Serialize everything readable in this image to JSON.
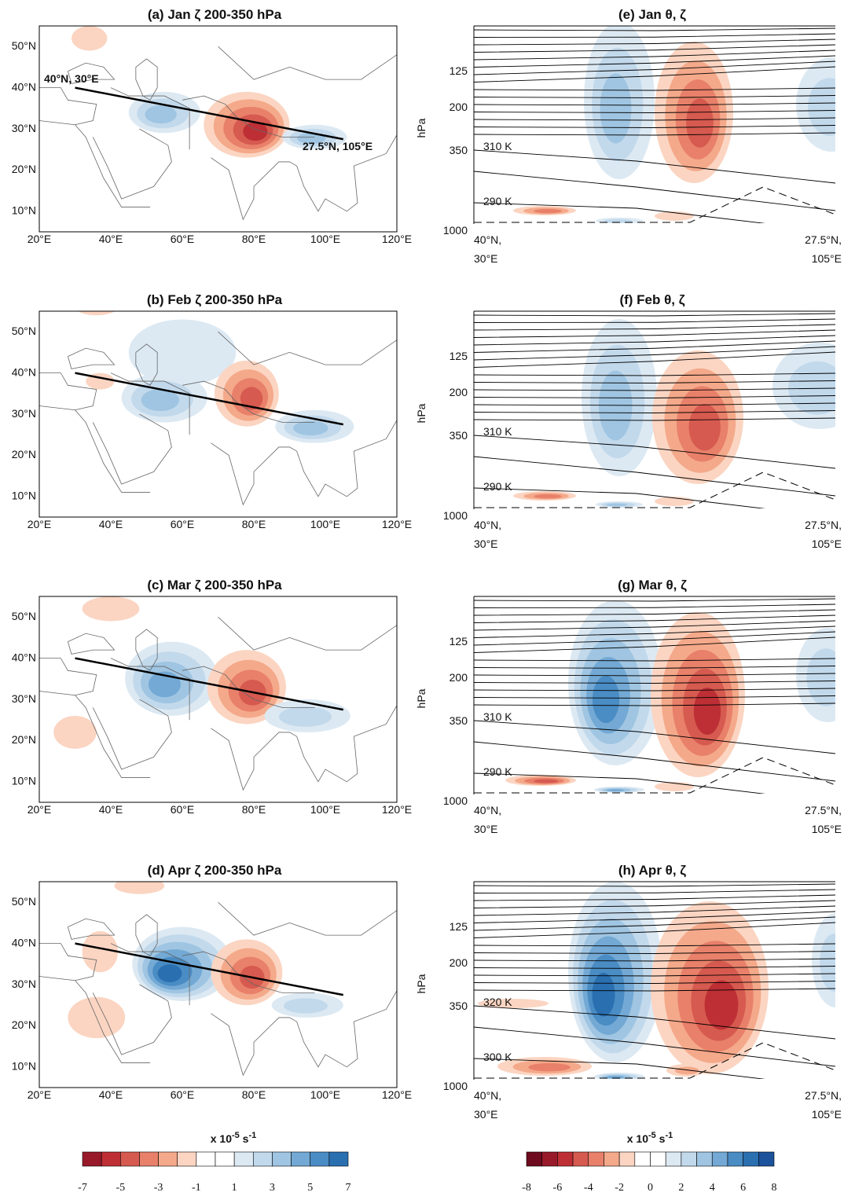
{
  "panels": [
    {
      "title": "(a) Jan ζ 200-350 hPa",
      "x_ticks": [
        "20°E",
        "40°E",
        "60°E",
        "80°E",
        "100°E",
        "120°E"
      ],
      "y_ticks": [
        "50°N",
        "40°N",
        "30°N",
        "20°N",
        "10°N"
      ],
      "annotations": [
        "40°N, 30°E",
        "27.5°N, 105°E"
      ]
    },
    {
      "title": "(b) Feb ζ 200-350 hPa",
      "x_ticks": [
        "20°E",
        "40°E",
        "60°E",
        "80°E",
        "100°E",
        "120°E"
      ],
      "y_ticks": [
        "50°N",
        "40°N",
        "30°N",
        "20°N",
        "10°N"
      ]
    },
    {
      "title": "(c) Mar ζ 200-350 hPa",
      "x_ticks": [
        "20°E",
        "40°E",
        "60°E",
        "80°E",
        "100°E",
        "120°E"
      ],
      "y_ticks": [
        "50°N",
        "40°N",
        "30°N",
        "20°N",
        "10°N"
      ]
    },
    {
      "title": "(d) Apr ζ 200-350 hPa",
      "x_ticks": [
        "20°E",
        "40°E",
        "60°E",
        "80°E",
        "100°E",
        "120°E"
      ],
      "y_ticks": [
        "50°N",
        "40°N",
        "30°N",
        "20°N",
        "10°N"
      ]
    }
  ],
  "sections": [
    {
      "title": "(e) Jan θ, ζ",
      "y_axis_label": "hPa",
      "y_ticks": [
        "125",
        "200",
        "350",
        "1000"
      ],
      "x_start": [
        "40°N,",
        "30°E"
      ],
      "x_end": [
        "27.5°N,",
        "105°E"
      ],
      "annotations": [
        "310 K",
        "290 K"
      ]
    },
    {
      "title": "(f) Feb θ, ζ",
      "y_axis_label": "hPa",
      "y_ticks": [
        "125",
        "200",
        "350",
        "1000"
      ],
      "x_start": [
        "40°N,",
        "30°E"
      ],
      "x_end": [
        "27.5°N,",
        "105°E"
      ],
      "annotations": [
        "310 K",
        "290 K"
      ]
    },
    {
      "title": "(g) Mar θ, ζ",
      "y_axis_label": "hPa",
      "y_ticks": [
        "125",
        "200",
        "350",
        "1000"
      ],
      "x_start": [
        "40°N,",
        "30°E"
      ],
      "x_end": [
        "27.5°N,",
        "105°E"
      ],
      "annotations": [
        "310 K",
        "290 K"
      ]
    },
    {
      "title": "(h) Apr θ, ζ",
      "y_axis_label": "hPa",
      "y_ticks": [
        "125",
        "200",
        "350",
        "1000"
      ],
      "x_start": [
        "40°N,",
        "30°E"
      ],
      "x_end": [
        "27.5°N,",
        "105°E"
      ],
      "annotations": [
        "320 K",
        "300 K"
      ]
    }
  ],
  "colorbars": [
    {
      "label_parts": [
        "x 10",
        "-5",
        " s",
        "-1"
      ],
      "ticks": [
        "-7",
        "-5",
        "-3",
        "-1",
        "1",
        "3",
        "5",
        "7"
      ]
    },
    {
      "label_parts": [
        "x 10",
        "-5",
        " s",
        "-1"
      ],
      "ticks": [
        "-8",
        "-6",
        "-4",
        "-2",
        "0",
        "2",
        "4",
        "6",
        "8"
      ]
    }
  ]
}
